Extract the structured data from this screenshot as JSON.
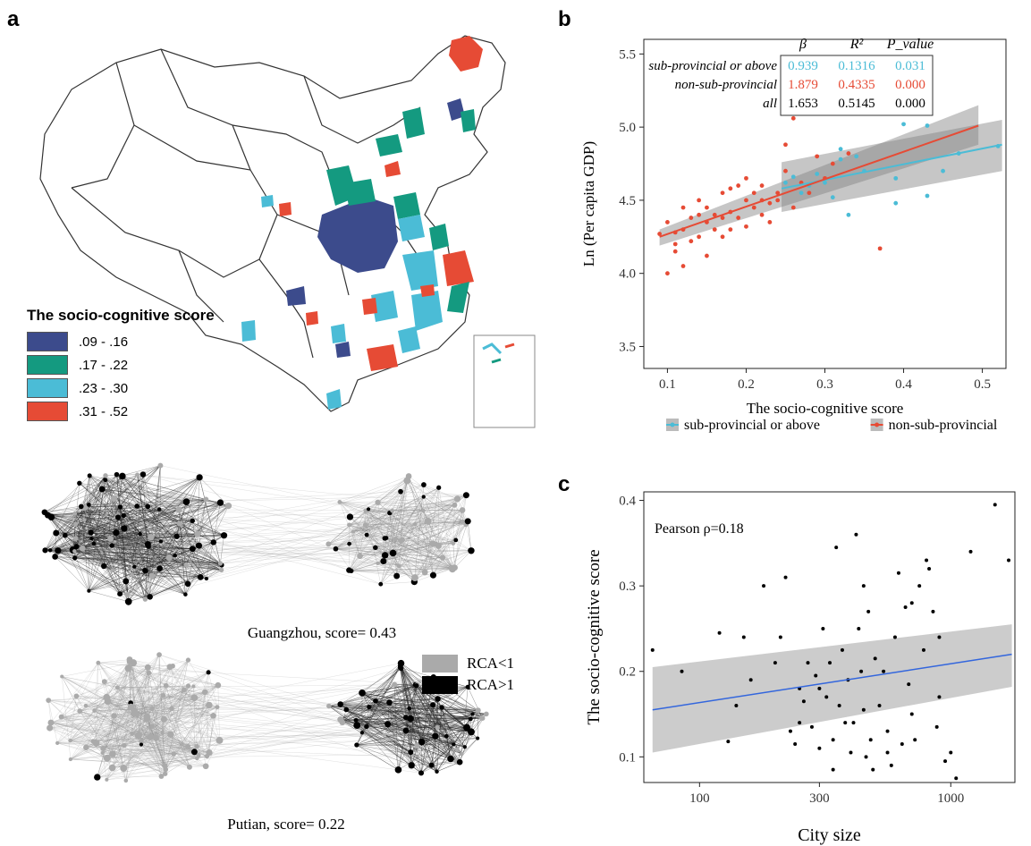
{
  "panels": {
    "a": "a",
    "b": "b",
    "c": "c"
  },
  "map_legend": {
    "title": "The socio-cognitive score",
    "items": [
      {
        "label": ".09 - .16",
        "color": "#3c4b8c"
      },
      {
        "label": ".17 - .22",
        "color": "#149a80"
      },
      {
        "label": ".23 - .30",
        "color": "#4bbcd6"
      },
      {
        "label": ".31 - .52",
        "color": "#e64b35"
      }
    ]
  },
  "networks": {
    "top_caption": "Guangzhou, score= 0.43",
    "bottom_caption": "Putian, score= 0.22",
    "legend": [
      {
        "label": "RCA<1",
        "color": "#aaaaaa"
      },
      {
        "label": "RCA>1",
        "color": "#000000"
      }
    ]
  },
  "chart_data": [
    {
      "type": "scatter",
      "panel": "b",
      "xlabel": "The socio-cognitive score",
      "ylabel": "Ln (Per capita GDP)",
      "xlim": [
        0.07,
        0.53
      ],
      "ylim": [
        3.35,
        5.6
      ],
      "xticks": [
        "0.1",
        "0.2",
        "0.3",
        "0.4",
        "0.5"
      ],
      "yticks": [
        "3.5",
        "4.0",
        "4.5",
        "5.0",
        "5.5"
      ],
      "grid": false,
      "legend_position": "bottom",
      "series": [
        {
          "name": "sub-provincial or above",
          "color": "#4bbcd6",
          "points": [
            [
              0.25,
              4.62
            ],
            [
              0.26,
              4.66
            ],
            [
              0.27,
              4.55
            ],
            [
              0.28,
              4.6
            ],
            [
              0.29,
              4.68
            ],
            [
              0.3,
              4.62
            ],
            [
              0.31,
              4.52
            ],
            [
              0.32,
              4.85
            ],
            [
              0.33,
              4.4
            ],
            [
              0.32,
              4.78
            ],
            [
              0.34,
              4.8
            ],
            [
              0.39,
              4.65
            ],
            [
              0.4,
              5.02
            ],
            [
              0.43,
              5.01
            ],
            [
              0.43,
              4.53
            ],
            [
              0.45,
              4.7
            ],
            [
              0.47,
              4.82
            ],
            [
              0.52,
              4.87
            ],
            [
              0.39,
              4.48
            ],
            [
              0.35,
              4.7
            ]
          ],
          "fit": {
            "x": [
              0.245,
              0.525
            ],
            "y": [
              4.58,
              4.88
            ],
            "ci_upper": [
              4.76,
              5.05
            ],
            "ci_lower": [
              4.42,
              4.7
            ]
          }
        },
        {
          "name": "non-sub-provincial",
          "color": "#e64b35",
          "points": [
            [
              0.09,
              4.27
            ],
            [
              0.1,
              4.0
            ],
            [
              0.1,
              4.35
            ],
            [
              0.11,
              4.15
            ],
            [
              0.11,
              4.2
            ],
            [
              0.12,
              4.05
            ],
            [
              0.12,
              4.3
            ],
            [
              0.13,
              4.38
            ],
            [
              0.13,
              4.22
            ],
            [
              0.14,
              4.4
            ],
            [
              0.14,
              4.5
            ],
            [
              0.15,
              4.35
            ],
            [
              0.15,
              4.45
            ],
            [
              0.15,
              4.12
            ],
            [
              0.16,
              4.3
            ],
            [
              0.16,
              4.4
            ],
            [
              0.17,
              4.25
            ],
            [
              0.17,
              4.55
            ],
            [
              0.18,
              4.42
            ],
            [
              0.18,
              4.3
            ],
            [
              0.19,
              4.6
            ],
            [
              0.19,
              4.38
            ],
            [
              0.2,
              4.5
            ],
            [
              0.2,
              4.32
            ],
            [
              0.21,
              4.45
            ],
            [
              0.21,
              4.55
            ],
            [
              0.22,
              4.4
            ],
            [
              0.22,
              4.6
            ],
            [
              0.23,
              4.48
            ],
            [
              0.23,
              4.35
            ],
            [
              0.24,
              4.55
            ],
            [
              0.24,
              4.5
            ],
            [
              0.25,
              4.7
            ],
            [
              0.25,
              4.88
            ],
            [
              0.26,
              5.06
            ],
            [
              0.27,
              4.62
            ],
            [
              0.28,
              4.55
            ],
            [
              0.29,
              4.8
            ],
            [
              0.3,
              4.65
            ],
            [
              0.31,
              4.75
            ],
            [
              0.33,
              4.82
            ],
            [
              0.37,
              4.17
            ],
            [
              0.12,
              4.45
            ],
            [
              0.14,
              4.25
            ],
            [
              0.17,
              4.38
            ],
            [
              0.2,
              4.65
            ],
            [
              0.22,
              4.5
            ],
            [
              0.26,
              4.45
            ],
            [
              0.11,
              4.28
            ],
            [
              0.18,
              4.58
            ]
          ],
          "fit": {
            "x": [
              0.09,
              0.495
            ],
            "y": [
              4.25,
              5.01
            ],
            "ci_upper": [
              4.3,
              5.15
            ],
            "ci_lower": [
              4.19,
              4.88
            ]
          }
        }
      ],
      "table": {
        "headers": [
          "β",
          "R²",
          "P_value"
        ],
        "rows": [
          {
            "label": "sub-provincial or above",
            "values": [
              "0.939",
              "0.1316",
              "0.031"
            ],
            "color": "#4bbcd6"
          },
          {
            "label": "non-sub-provincial",
            "values": [
              "1.879",
              "0.4335",
              "0.000"
            ],
            "color": "#e64b35"
          },
          {
            "label": "all",
            "values": [
              "1.653",
              "0.5145",
              "0.000"
            ],
            "color": "#000000"
          }
        ]
      }
    },
    {
      "type": "scatter",
      "panel": "c",
      "xlabel": "City size",
      "ylabel": "The socio-cognitive score",
      "xscale": "log",
      "xlim": [
        60,
        1800
      ],
      "ylim": [
        0.07,
        0.41
      ],
      "xticks": [
        "100",
        "300",
        "1000"
      ],
      "yticks": [
        "0.1",
        "0.2",
        "0.3",
        "0.4"
      ],
      "grid": false,
      "annotation": "Pearson ρ=0.18",
      "points": [
        [
          65,
          0.225
        ],
        [
          85,
          0.2
        ],
        [
          120,
          0.245
        ],
        [
          130,
          0.118
        ],
        [
          140,
          0.16
        ],
        [
          150,
          0.24
        ],
        [
          160,
          0.19
        ],
        [
          180,
          0.3
        ],
        [
          200,
          0.21
        ],
        [
          210,
          0.24
        ],
        [
          220,
          0.31
        ],
        [
          230,
          0.13
        ],
        [
          240,
          0.115
        ],
        [
          250,
          0.18
        ],
        [
          260,
          0.165
        ],
        [
          270,
          0.21
        ],
        [
          280,
          0.135
        ],
        [
          290,
          0.195
        ],
        [
          300,
          0.11
        ],
        [
          310,
          0.25
        ],
        [
          320,
          0.17
        ],
        [
          330,
          0.21
        ],
        [
          340,
          0.12
        ],
        [
          350,
          0.345
        ],
        [
          360,
          0.16
        ],
        [
          370,
          0.225
        ],
        [
          380,
          0.14
        ],
        [
          390,
          0.19
        ],
        [
          400,
          0.105
        ],
        [
          420,
          0.36
        ],
        [
          430,
          0.25
        ],
        [
          440,
          0.2
        ],
        [
          450,
          0.155
        ],
        [
          460,
          0.1
        ],
        [
          470,
          0.27
        ],
        [
          480,
          0.12
        ],
        [
          490,
          0.085
        ],
        [
          500,
          0.215
        ],
        [
          520,
          0.16
        ],
        [
          540,
          0.2
        ],
        [
          560,
          0.13
        ],
        [
          580,
          0.09
        ],
        [
          600,
          0.24
        ],
        [
          620,
          0.315
        ],
        [
          640,
          0.115
        ],
        [
          660,
          0.275
        ],
        [
          680,
          0.185
        ],
        [
          700,
          0.28
        ],
        [
          720,
          0.12
        ],
        [
          750,
          0.3
        ],
        [
          780,
          0.225
        ],
        [
          800,
          0.33
        ],
        [
          820,
          0.32
        ],
        [
          850,
          0.27
        ],
        [
          880,
          0.135
        ],
        [
          900,
          0.24
        ],
        [
          950,
          0.095
        ],
        [
          1000,
          0.105
        ],
        [
          1050,
          0.075
        ],
        [
          1200,
          0.34
        ],
        [
          1500,
          0.395
        ],
        [
          1700,
          0.33
        ],
        [
          340,
          0.085
        ],
        [
          300,
          0.18
        ],
        [
          410,
          0.14
        ],
        [
          560,
          0.105
        ],
        [
          250,
          0.14
        ],
        [
          450,
          0.3
        ],
        [
          700,
          0.15
        ],
        [
          900,
          0.17
        ]
      ],
      "fit": {
        "x": [
          65,
          1750
        ],
        "y": [
          0.155,
          0.22
        ],
        "ci_upper": [
          0.205,
          0.255
        ],
        "ci_lower": [
          0.105,
          0.182
        ]
      }
    }
  ]
}
